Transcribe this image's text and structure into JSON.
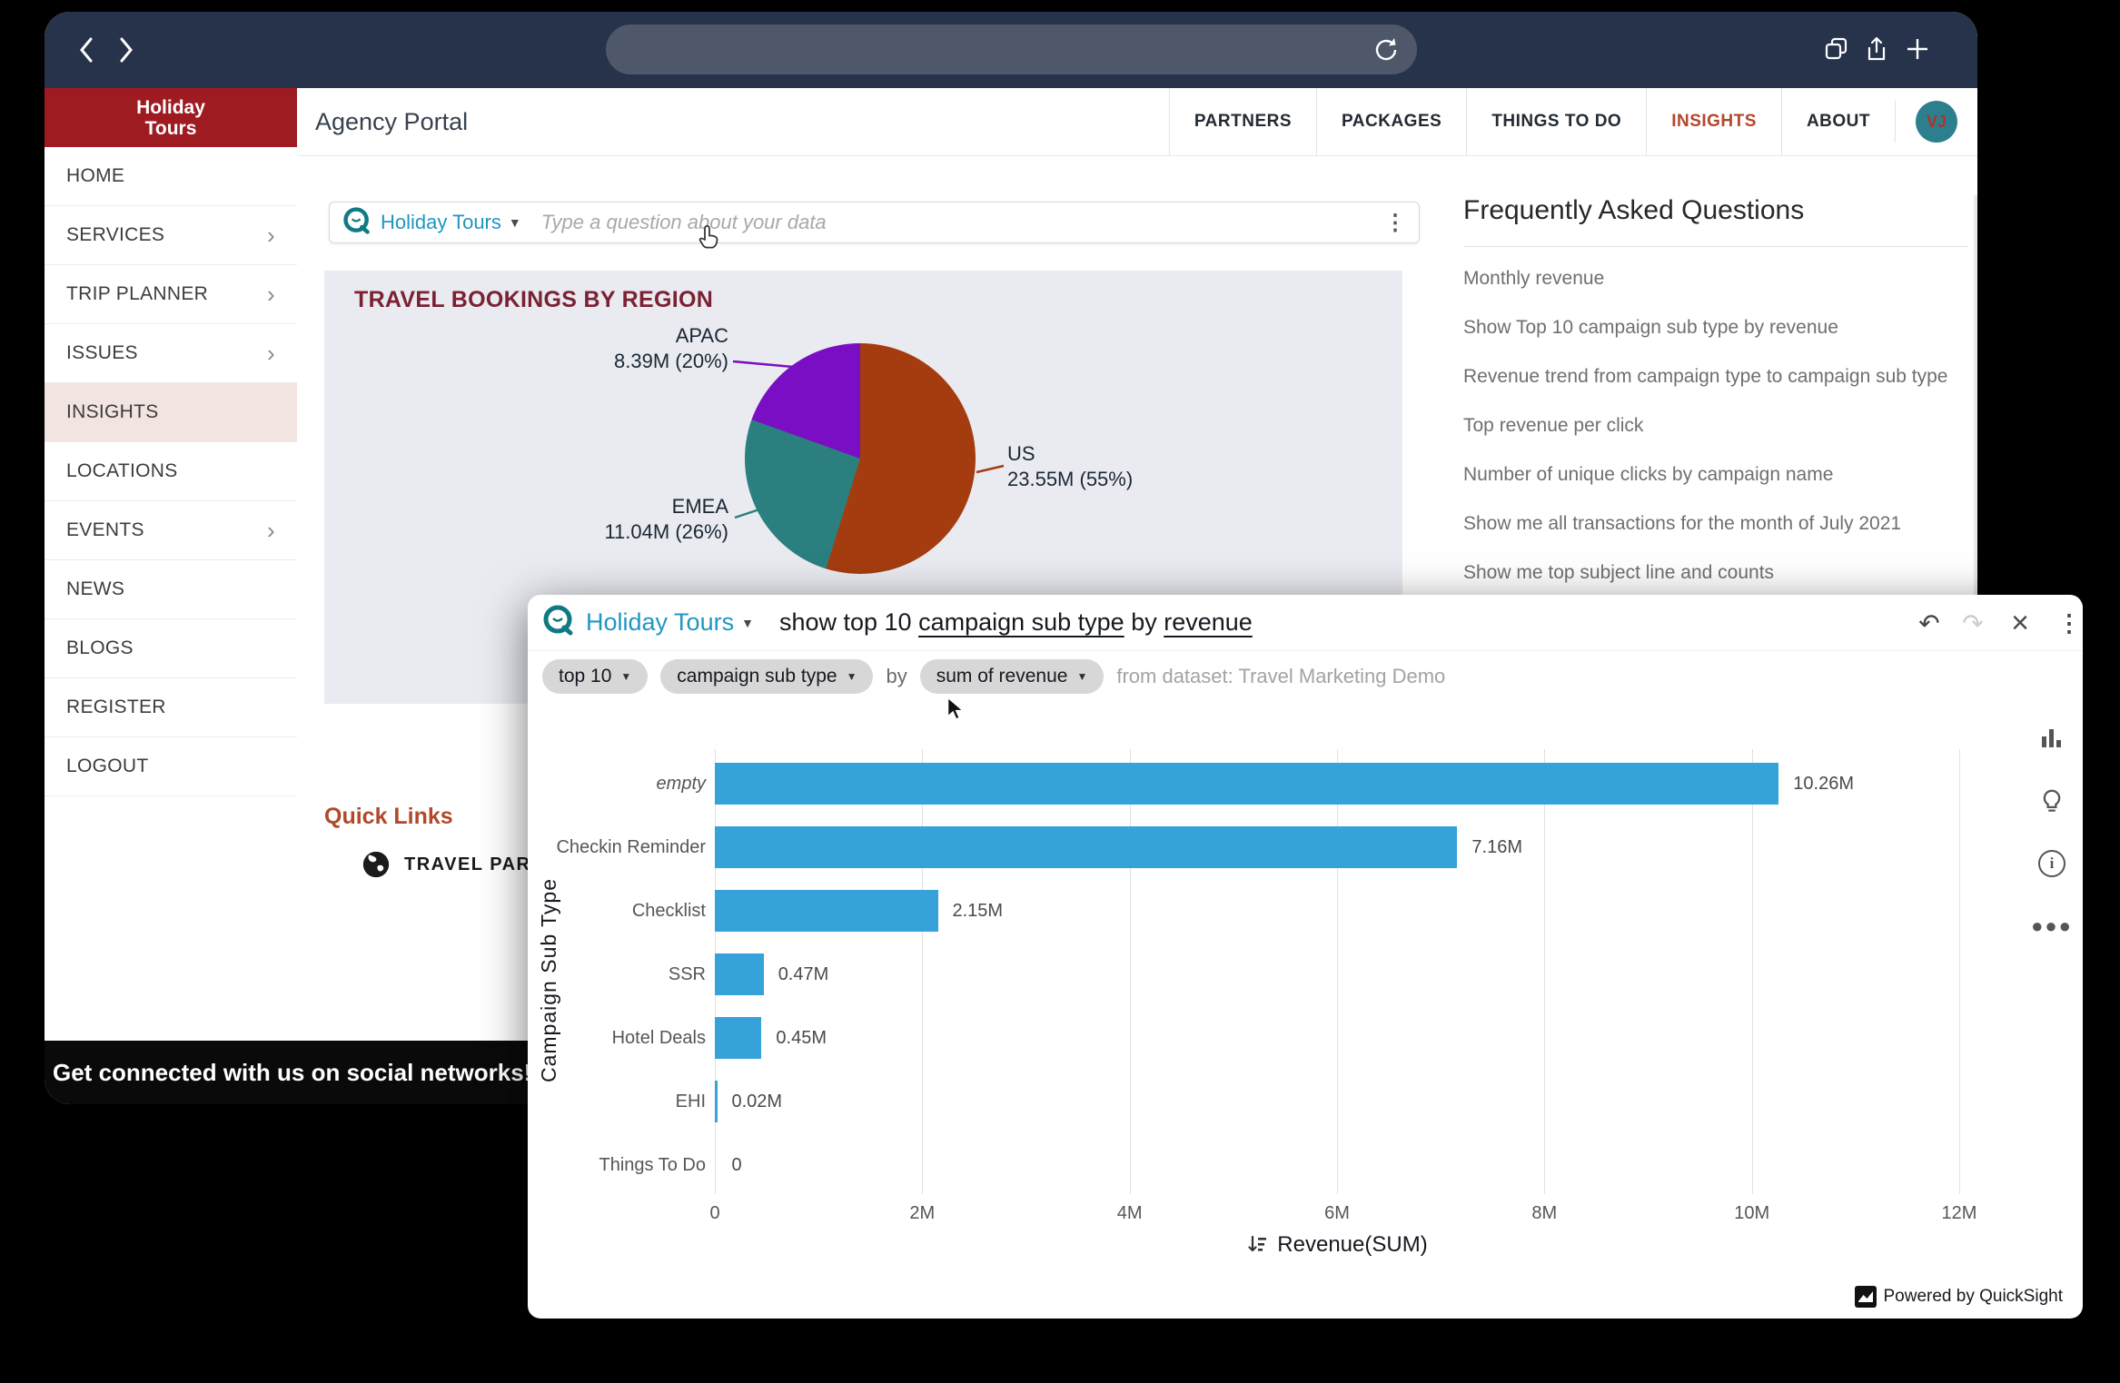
{
  "brand": {
    "line1": "Holiday",
    "line2": "Tours"
  },
  "page_title": "Agency Portal",
  "top_nav": {
    "items": [
      {
        "label": "PARTNERS",
        "active": false
      },
      {
        "label": "PACKAGES",
        "active": false
      },
      {
        "label": "THINGS TO DO",
        "active": false
      },
      {
        "label": "INSIGHTS",
        "active": true
      },
      {
        "label": "ABOUT",
        "active": false
      }
    ],
    "avatar_initials": "VJ"
  },
  "sidebar": {
    "items": [
      {
        "label": "HOME",
        "arrow": false,
        "active": false
      },
      {
        "label": "SERVICES",
        "arrow": true,
        "active": false
      },
      {
        "label": "TRIP PLANNER",
        "arrow": true,
        "active": false
      },
      {
        "label": "ISSUES",
        "arrow": true,
        "active": false
      },
      {
        "label": "INSIGHTS",
        "arrow": false,
        "active": true
      },
      {
        "label": "LOCATIONS",
        "arrow": false,
        "active": false
      },
      {
        "label": "EVENTS",
        "arrow": true,
        "active": false
      },
      {
        "label": "NEWS",
        "arrow": false,
        "active": false
      },
      {
        "label": "BLOGS",
        "arrow": false,
        "active": false
      },
      {
        "label": "REGISTER",
        "arrow": false,
        "active": false
      },
      {
        "label": "LOGOUT",
        "arrow": false,
        "active": false
      }
    ]
  },
  "q_bar": {
    "topic": "Holiday Tours",
    "placeholder": "Type a question about your data"
  },
  "faq": {
    "heading": "Frequently Asked Questions",
    "items": [
      "Monthly revenue",
      "Show Top 10 campaign sub type by revenue",
      "Revenue trend from campaign type to campaign sub type",
      "Top revenue per click",
      "Number of unique clicks by campaign name",
      "Show me all transactions for the month of July 2021",
      "Show me top subject line and counts"
    ]
  },
  "quick_links": {
    "heading": "Quick Links",
    "partner_link": "TRAVEL PARTNER"
  },
  "footer": {
    "text": "Get connected with us on social networks!"
  },
  "modal": {
    "topic": "Holiday Tours",
    "query": {
      "prefix": "show top 10 ",
      "term1": "campaign sub type",
      "middle": " by ",
      "term2": "revenue"
    },
    "chips": [
      {
        "label": "top 10"
      },
      {
        "label": "campaign sub type"
      },
      {
        "label": "sum of revenue"
      }
    ],
    "by_label": "by",
    "dataset_label": "from dataset: Travel Marketing Demo",
    "powered_by": "Powered by QuickSight"
  },
  "chart_data": [
    {
      "type": "pie",
      "title": "TRAVEL BOOKINGS BY REGION",
      "slices": [
        {
          "label": "US",
          "value": 23.55,
          "pct": 55,
          "value_label": "23.55M (55%)",
          "color": "#a53c10"
        },
        {
          "label": "EMEA",
          "value": 11.04,
          "pct": 26,
          "value_label": "11.04M (26%)",
          "color": "#2b7f7f"
        },
        {
          "label": "APAC",
          "value": 8.39,
          "pct": 20,
          "value_label": "8.39M (20%)",
          "color": "#7a0ec4"
        }
      ]
    },
    {
      "type": "bar",
      "orientation": "horizontal",
      "ylabel": "Campaign Sub Type",
      "xlabel": "Revenue(SUM)",
      "categories": [
        "empty",
        "Checkin Reminder",
        "Checklist",
        "SSR",
        "Hotel Deals",
        "EHI",
        "Things To Do"
      ],
      "values": [
        10.26,
        7.16,
        2.15,
        0.47,
        0.45,
        0.02,
        0
      ],
      "value_labels": [
        "10.26M",
        "7.16M",
        "2.15M",
        "0.47M",
        "0.45M",
        "0.02M",
        "0"
      ],
      "xlim": [
        0,
        12
      ],
      "ticks": [
        {
          "v": 0,
          "label": "0"
        },
        {
          "v": 2,
          "label": "2M"
        },
        {
          "v": 4,
          "label": "4M"
        },
        {
          "v": 6,
          "label": "6M"
        },
        {
          "v": 8,
          "label": "8M"
        },
        {
          "v": 10,
          "label": "10M"
        },
        {
          "v": 12,
          "label": "12M"
        }
      ],
      "italic_categories": [
        "empty"
      ],
      "bar_color": "#35a2da",
      "grid": true
    }
  ]
}
